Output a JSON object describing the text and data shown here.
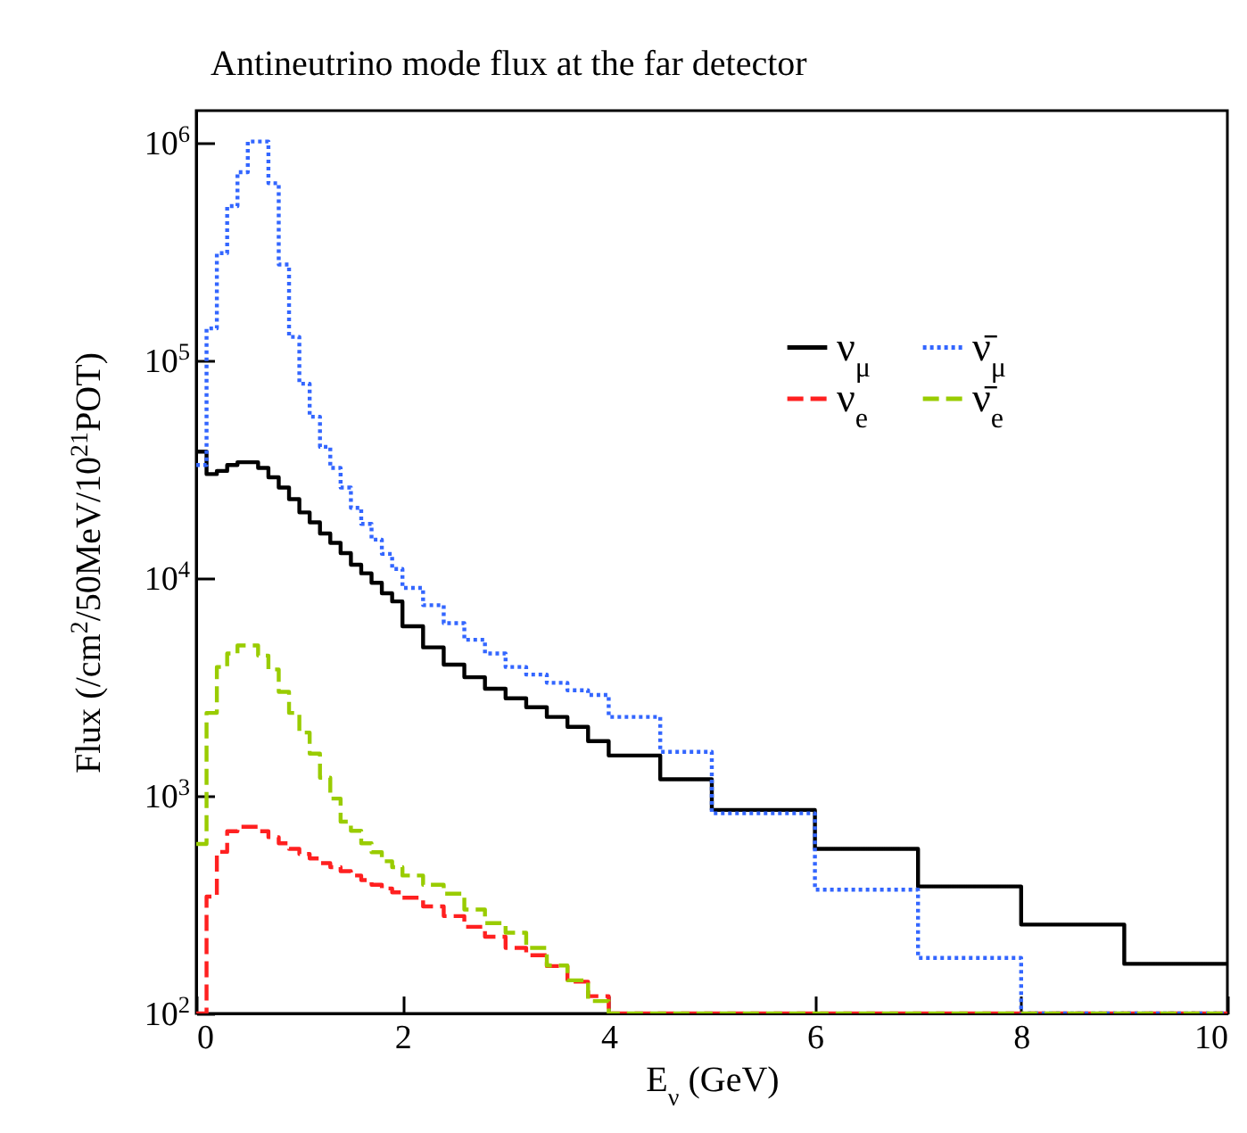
{
  "chart_data": {
    "type": "histogram",
    "title": "Antineutrino mode flux at the far detector",
    "xlabel": "E$_{ν}$ (GeV)",
    "ylabel": "Flux (/cm$^{2}$/50MeV/10$^{21}$POT)",
    "bins": [
      0,
      0.1,
      0.2,
      0.3,
      0.4,
      0.5,
      0.6,
      0.7,
      0.8,
      0.9,
      1.0,
      1.1,
      1.2,
      1.3,
      1.4,
      1.5,
      1.6,
      1.7,
      1.8,
      1.9,
      2.0,
      2.2,
      2.4,
      2.6,
      2.8,
      3.0,
      3.2,
      3.4,
      3.6,
      3.8,
      4.0,
      4.5,
      5,
      6,
      7,
      8,
      9,
      10
    ],
    "series": [
      {
        "name": "ν$_{μ}$",
        "color": "#000000",
        "line_style": "solid",
        "values": [
          38000,
          30000,
          31000,
          33000,
          34000,
          34000,
          32000,
          29000,
          26000,
          23000,
          20000,
          18000,
          16000,
          14500,
          13000,
          11500,
          10500,
          9500,
          8500,
          7800,
          6000,
          4800,
          4000,
          3500,
          3100,
          2800,
          2550,
          2300,
          2070,
          1780,
          1530,
          1190,
          860,
          570,
          383,
          256,
          169
        ]
      },
      {
        "name": "ν$_{e}$",
        "color": "#ff2020",
        "line_style": "dashed",
        "values": [
          null,
          344,
          552,
          687,
          720,
          720,
          687,
          645,
          605,
          570,
          540,
          515,
          490,
          470,
          450,
          430,
          410,
          390,
          375,
          360,
          340,
          310,
          280,
          250,
          225,
          200,
          185,
          165,
          140,
          120,
          null,
          null,
          null,
          null,
          null,
          null,
          null
        ]
      },
      {
        "name": "ν̄$_{μ}$",
        "color": "#3366ff",
        "line_style": "dotted",
        "values": [
          33000,
          140000,
          310000,
          510000,
          730000,
          1010000,
          1010000,
          650000,
          275000,
          128000,
          78000,
          55000,
          40000,
          32000,
          26000,
          21000,
          17700,
          15000,
          12900,
          11000,
          9000,
          7500,
          6200,
          5200,
          4500,
          3900,
          3600,
          3300,
          3050,
          2900,
          2300,
          1590,
          830,
          370,
          180,
          null,
          null
        ]
      },
      {
        "name": "ν̄$_{e}$",
        "color": "#99cc00",
        "line_style": "dashed",
        "values": [
          600,
          2400,
          3900,
          4500,
          4900,
          4900,
          4400,
          3800,
          3000,
          2400,
          1950,
          1560,
          1210,
          970,
          760,
          690,
          605,
          550,
          500,
          470,
          430,
          390,
          355,
          300,
          260,
          235,
          200,
          166,
          142,
          114,
          null,
          null,
          null,
          null,
          null,
          null,
          null
        ]
      }
    ],
    "xlim": [
      0,
      10
    ],
    "xticks": [
      0,
      2,
      4,
      6,
      8,
      10
    ],
    "ylim": [
      100,
      1400000
    ],
    "log": true,
    "yticks": [
      {
        "value": 100,
        "label": "10$^{2}$"
      },
      {
        "value": 1000,
        "label": "10$^{3}$"
      },
      {
        "value": 10000,
        "label": "10$^{4}$"
      },
      {
        "value": 100000,
        "label": "10$^{5}$"
      },
      {
        "value": 1000000,
        "label": "10$^{6}$"
      }
    ],
    "legend": "top right"
  }
}
